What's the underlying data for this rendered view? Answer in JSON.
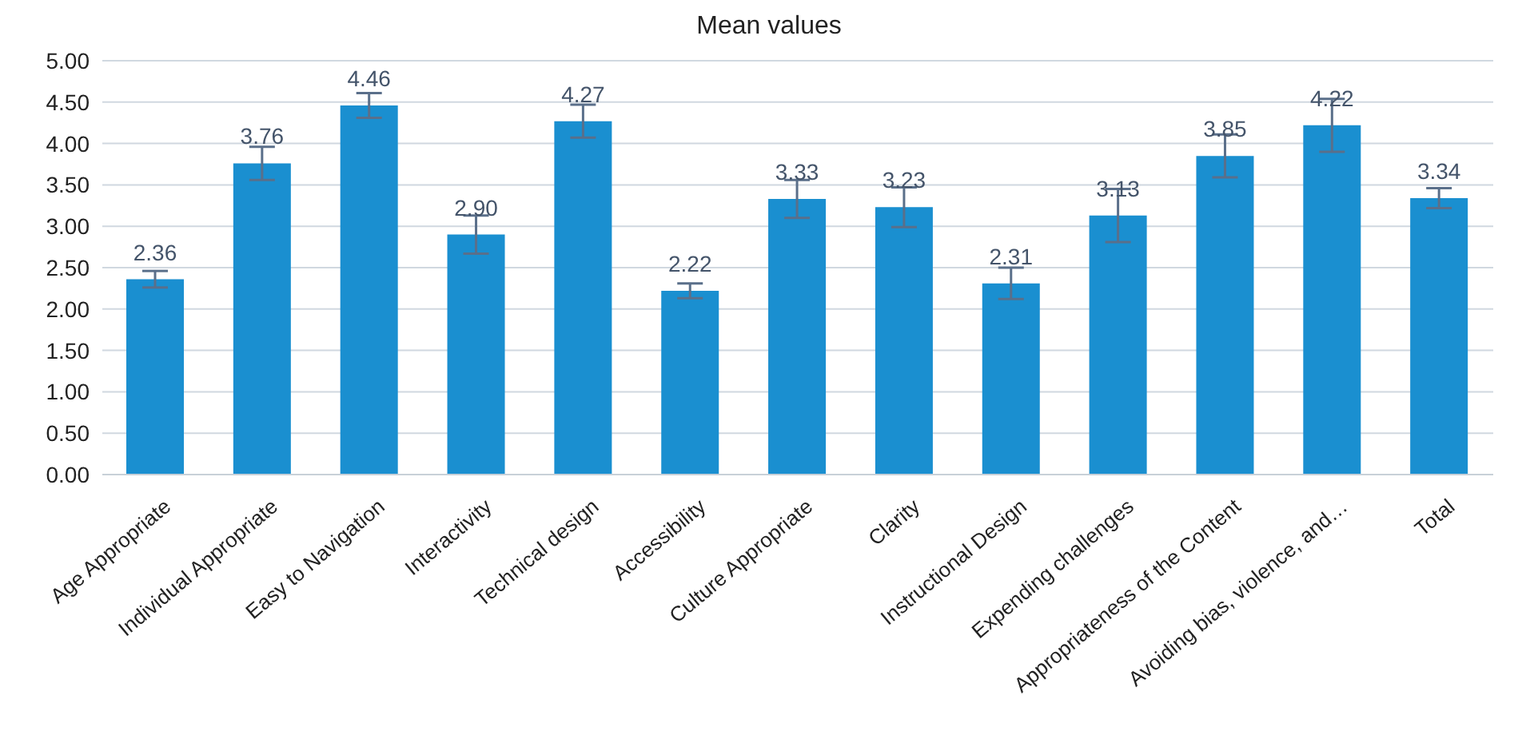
{
  "chart_data": {
    "type": "bar",
    "title": "Mean values",
    "categories": [
      "Age Appropriate",
      "Individual Appropriate",
      "Easy to Navigation",
      "Interactivity",
      "Technical design",
      "Accessibility",
      "Culture Appropriate",
      "Clarity",
      "Instructional Design",
      "Expending challenges",
      "Appropriateness of the Content",
      "Avoiding bias, violence, and…",
      "Total"
    ],
    "values": [
      2.36,
      3.76,
      4.46,
      2.9,
      4.27,
      2.22,
      3.33,
      3.23,
      2.31,
      3.13,
      3.85,
      4.22,
      3.34
    ],
    "value_labels": [
      "2.36",
      "3.76",
      "4.46",
      "2.90",
      "4.27",
      "2.22",
      "3.33",
      "3.23",
      "2.31",
      "3.13",
      "3.85",
      "4.22",
      "3.34"
    ],
    "errors": [
      0.1,
      0.2,
      0.15,
      0.23,
      0.2,
      0.09,
      0.23,
      0.24,
      0.19,
      0.32,
      0.26,
      0.32,
      0.12
    ],
    "color": "#1a8fd0",
    "ylim": [
      0,
      5
    ],
    "yticks": [
      {
        "value": 0,
        "label": "0.00"
      },
      {
        "value": 0.5,
        "label": "0.50"
      },
      {
        "value": 1,
        "label": "1.00"
      },
      {
        "value": 1.5,
        "label": "1.50"
      },
      {
        "value": 2,
        "label": "2.00"
      },
      {
        "value": 2.5,
        "label": "2.50"
      },
      {
        "value": 3,
        "label": "3.00"
      },
      {
        "value": 3.5,
        "label": "3.50"
      },
      {
        "value": 4,
        "label": "4.00"
      },
      {
        "value": 4.5,
        "label": "4.50"
      },
      {
        "value": 5,
        "label": "5.00"
      }
    ],
    "grid": "y"
  }
}
